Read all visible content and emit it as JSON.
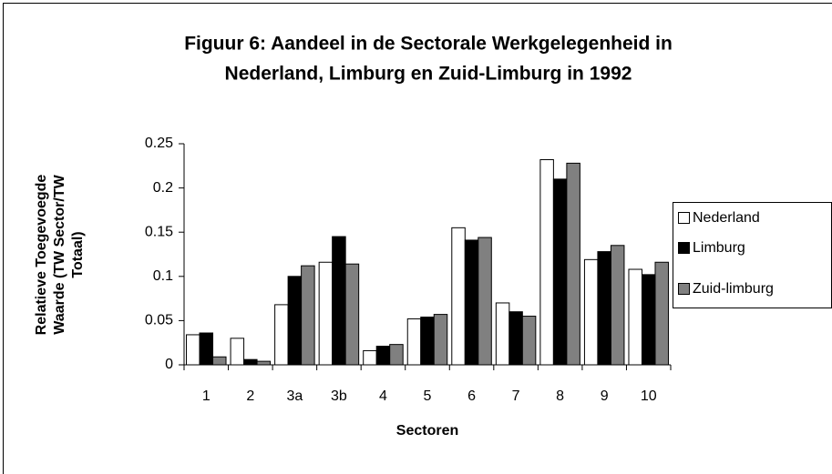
{
  "chart_data": {
    "type": "bar",
    "title": [
      "Figuur 6: Aandeel in de Sectorale Werkgelegenheid in",
      "Nederland, Limburg en Zuid-Limburg in 1992"
    ],
    "y_label": [
      "Relatieve Toegevoegde",
      "Waarde (TW Sector/TW",
      "Totaal)"
    ],
    "x_label": "Sectoren",
    "categories": [
      "1",
      "2",
      "3a",
      "3b",
      "4",
      "5",
      "6",
      "7",
      "8",
      "9",
      "10"
    ],
    "series": [
      {
        "name": "Nederland",
        "color": "#ffffff",
        "values": [
          0.034,
          0.03,
          0.068,
          0.116,
          0.016,
          0.052,
          0.155,
          0.07,
          0.232,
          0.119,
          0.108
        ]
      },
      {
        "name": "Limburg",
        "color": "#000000",
        "values": [
          0.036,
          0.006,
          0.1,
          0.145,
          0.021,
          0.054,
          0.141,
          0.06,
          0.21,
          0.128,
          0.102
        ]
      },
      {
        "name": "Zuid-limburg",
        "color": "#808080",
        "values": [
          0.009,
          0.004,
          0.112,
          0.114,
          0.023,
          0.057,
          0.144,
          0.055,
          0.228,
          0.135,
          0.116
        ]
      }
    ],
    "ylim": [
      0,
      0.25
    ],
    "yticks": [
      0,
      0.05,
      0.1,
      0.15,
      0.2,
      0.25
    ],
    "grid": false,
    "legend": "right"
  }
}
